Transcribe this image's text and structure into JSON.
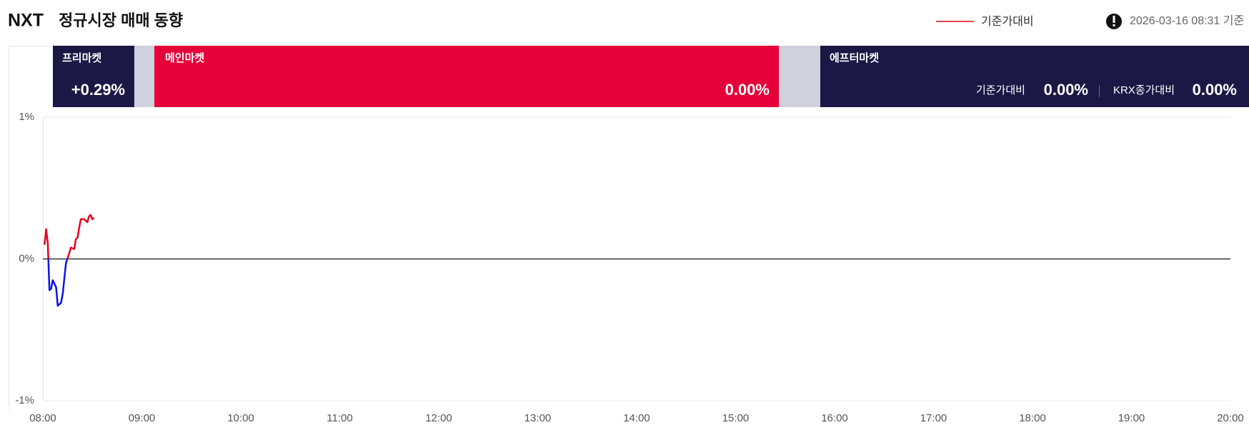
{
  "header": {
    "logo": "NXT",
    "timestamp": "2026-03-16 08:31 기준",
    "panels": [
      {
        "label": "프리마켓",
        "value": "+0.29%"
      },
      {
        "label": "메인마켓",
        "value": "0.00%"
      },
      {
        "label": "에프터마켓",
        "items": [
          {
            "label": "기준가대비",
            "value": "0.00%"
          },
          {
            "label": "KRX종가대비",
            "value": "0.00%"
          }
        ]
      }
    ]
  },
  "chart_data": {
    "type": "line",
    "title": "정규시장 매매 동향",
    "x": [
      "08:01",
      "08:02",
      "08:03",
      "08:04",
      "08:05",
      "08:06",
      "08:08",
      "08:09",
      "08:11",
      "08:12",
      "08:13",
      "08:14",
      "08:16",
      "08:17",
      "08:19",
      "08:20",
      "08:21",
      "08:22",
      "08:23",
      "08:25",
      "08:27",
      "08:28",
      "08:29",
      "08:30",
      "08:31"
    ],
    "series": [
      {
        "name": "기준가대비",
        "color": "#e8001e",
        "down_color": "#0a14e6",
        "values": [
          0.1,
          0.21,
          0.11,
          -0.22,
          -0.21,
          -0.15,
          -0.2,
          -0.33,
          -0.31,
          -0.25,
          -0.14,
          -0.03,
          0.04,
          0.08,
          0.07,
          0.14,
          0.15,
          0.22,
          0.28,
          0.28,
          0.26,
          0.3,
          0.31,
          0.28,
          0.29
        ]
      }
    ],
    "xlim": [
      "08:00",
      "20:00"
    ],
    "xticks": [
      "08:00",
      "09:00",
      "10:00",
      "11:00",
      "12:00",
      "13:00",
      "14:00",
      "15:00",
      "16:00",
      "17:00",
      "18:00",
      "19:00",
      "20:00"
    ],
    "ylim": [
      -1,
      1
    ],
    "yticks": [
      {
        "value": 1,
        "label": "1%"
      },
      {
        "value": 0,
        "label": "0%"
      },
      {
        "value": -1,
        "label": "-1%"
      }
    ]
  }
}
